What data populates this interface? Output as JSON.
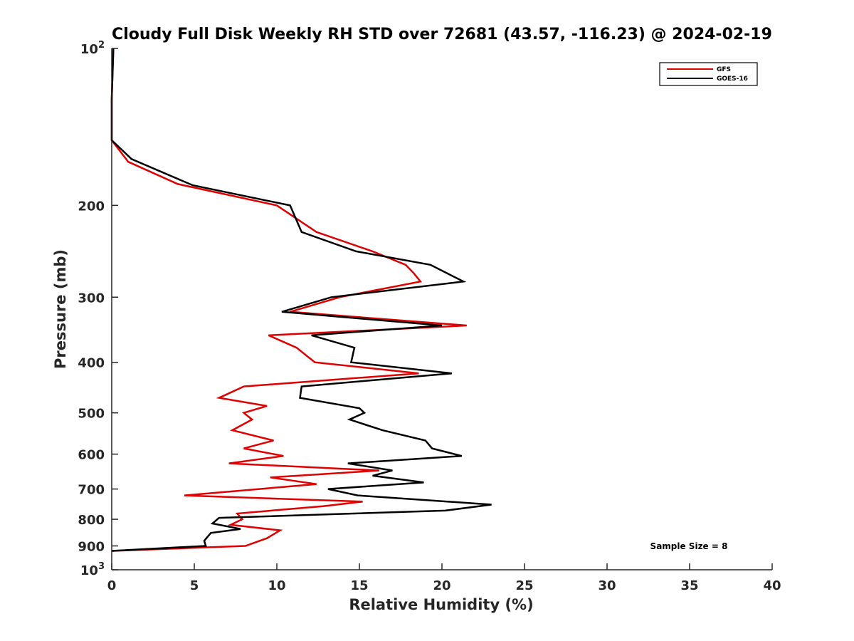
{
  "chart_data": {
    "type": "line",
    "title": "Cloudy Full Disk Weekly RH STD over 72681 (43.57, -116.23) @ 2024-02-19",
    "xlabel": "Relative Humidity (%)",
    "ylabel": "Pressure (mb)",
    "xlim": [
      0,
      40
    ],
    "ylim": [
      100,
      1000
    ],
    "y_scale": "log",
    "y_reversed": true,
    "grid": false,
    "legend_position": "top-right",
    "x_ticks": [
      0,
      5,
      10,
      15,
      20,
      25,
      30,
      35,
      40
    ],
    "x_tick_labels": [
      "0",
      "5",
      "10",
      "15",
      "20",
      "25",
      "30",
      "35",
      "40"
    ],
    "y_ticks": [
      100,
      200,
      300,
      400,
      500,
      600,
      700,
      800,
      900,
      1000
    ],
    "y_tick_labels": [
      {
        "base": "10",
        "exp": "2"
      },
      {
        "base": "200",
        "exp": ""
      },
      {
        "base": "300",
        "exp": ""
      },
      {
        "base": "400",
        "exp": ""
      },
      {
        "base": "500",
        "exp": ""
      },
      {
        "base": "600",
        "exp": ""
      },
      {
        "base": "700",
        "exp": ""
      },
      {
        "base": "800",
        "exp": ""
      },
      {
        "base": "900",
        "exp": ""
      },
      {
        "base": "10",
        "exp": "3"
      }
    ],
    "annotation": "Sample Size = 8",
    "series": [
      {
        "name": "GFS",
        "color": "#e00000",
        "points": [
          [
            0.1,
            100
          ],
          [
            0.0,
            125
          ],
          [
            0.0,
            150
          ],
          [
            1.0,
            165
          ],
          [
            4.0,
            182
          ],
          [
            10.0,
            200
          ],
          [
            12.4,
            225
          ],
          [
            15.8,
            245
          ],
          [
            17.8,
            260
          ],
          [
            18.3,
            270
          ],
          [
            18.7,
            280
          ],
          [
            13.8,
            300
          ],
          [
            10.8,
            320
          ],
          [
            21.5,
            340
          ],
          [
            9.5,
            355
          ],
          [
            11.2,
            375
          ],
          [
            12.3,
            400
          ],
          [
            18.6,
            420
          ],
          [
            8.0,
            445
          ],
          [
            6.5,
            468
          ],
          [
            9.4,
            485
          ],
          [
            8.0,
            500
          ],
          [
            8.5,
            515
          ],
          [
            7.3,
            540
          ],
          [
            9.8,
            565
          ],
          [
            8.0,
            585
          ],
          [
            10.4,
            605
          ],
          [
            7.1,
            625
          ],
          [
            16.2,
            645
          ],
          [
            9.6,
            665
          ],
          [
            12.4,
            685
          ],
          [
            4.4,
            720
          ],
          [
            15.2,
            740
          ],
          [
            12.8,
            755
          ],
          [
            7.6,
            780
          ],
          [
            7.9,
            800
          ],
          [
            7.2,
            820
          ],
          [
            10.2,
            840
          ],
          [
            9.4,
            870
          ],
          [
            8.1,
            900
          ],
          [
            0.0,
            920
          ]
        ]
      },
      {
        "name": "GOES-16",
        "color": "#000000",
        "points": [
          [
            0.1,
            100
          ],
          [
            0.0,
            125
          ],
          [
            0.0,
            150
          ],
          [
            1.2,
            163
          ],
          [
            4.9,
            183
          ],
          [
            10.8,
            200
          ],
          [
            11.5,
            225
          ],
          [
            14.8,
            245
          ],
          [
            19.3,
            260
          ],
          [
            21.3,
            280
          ],
          [
            13.3,
            300
          ],
          [
            10.3,
            320
          ],
          [
            20.0,
            340
          ],
          [
            12.1,
            355
          ],
          [
            14.7,
            375
          ],
          [
            14.5,
            400
          ],
          [
            20.6,
            420
          ],
          [
            11.5,
            445
          ],
          [
            11.4,
            468
          ],
          [
            15.0,
            490
          ],
          [
            15.3,
            500
          ],
          [
            14.4,
            515
          ],
          [
            16.4,
            540
          ],
          [
            19.0,
            565
          ],
          [
            19.4,
            585
          ],
          [
            21.2,
            605
          ],
          [
            14.3,
            625
          ],
          [
            17.0,
            645
          ],
          [
            15.8,
            660
          ],
          [
            18.9,
            680
          ],
          [
            13.1,
            700
          ],
          [
            14.9,
            720
          ],
          [
            23.0,
            750
          ],
          [
            20.2,
            770
          ],
          [
            6.5,
            795
          ],
          [
            6.1,
            815
          ],
          [
            7.8,
            835
          ],
          [
            6.0,
            850
          ],
          [
            5.6,
            880
          ],
          [
            5.7,
            900
          ],
          [
            0.0,
            920
          ]
        ]
      }
    ]
  }
}
